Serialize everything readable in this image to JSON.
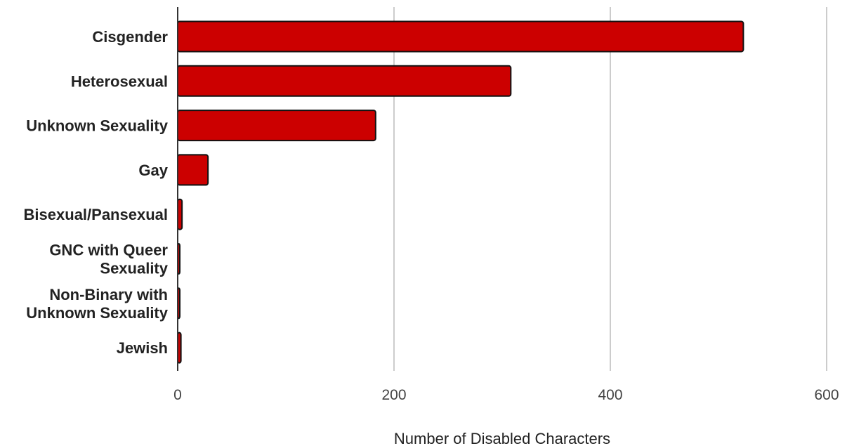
{
  "chart_data": {
    "type": "bar",
    "orientation": "horizontal",
    "title": "",
    "xlabel": "Number of Disabled Characters",
    "ylabel": "",
    "categories": [
      [
        "Cisgender"
      ],
      [
        "Heterosexual"
      ],
      [
        "Unknown Sexuality"
      ],
      [
        "Gay"
      ],
      [
        "Bisexual/Pansexual"
      ],
      [
        "GNC with Queer",
        "Sexuality"
      ],
      [
        "Non-Binary with",
        "Unknown Sexuality"
      ],
      [
        "Jewish"
      ]
    ],
    "values": [
      523,
      308,
      183,
      28,
      4,
      1,
      1,
      3
    ],
    "xlim": [
      0,
      600
    ],
    "xticks": [
      0,
      200,
      400,
      600
    ],
    "grid": true,
    "legend": "none",
    "bar_color": "#cc0000"
  }
}
